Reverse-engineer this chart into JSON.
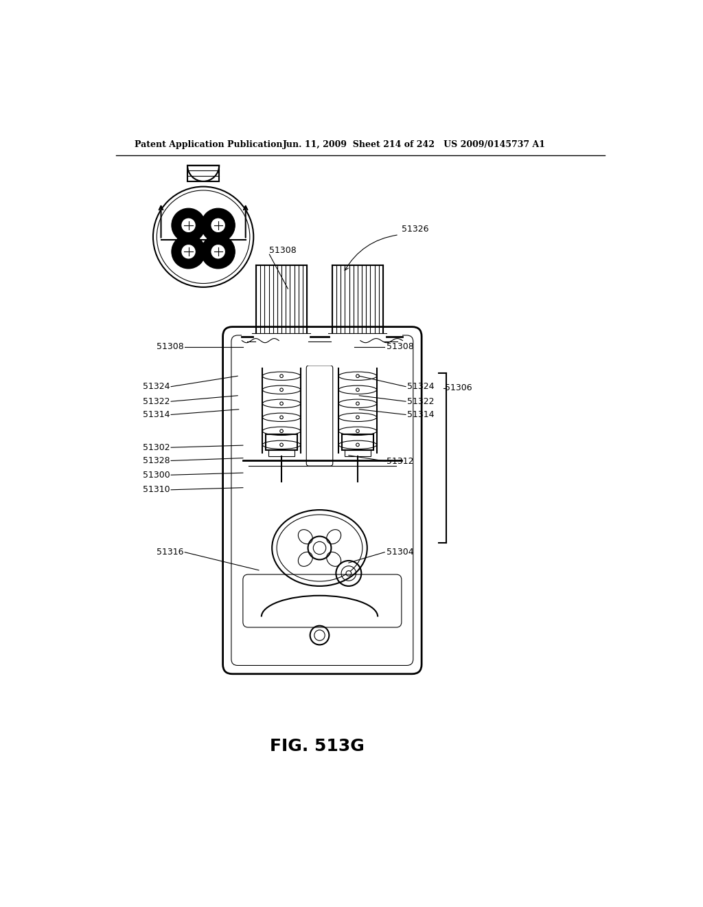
{
  "title_left": "Patent Application Publication",
  "title_right": "Jun. 11, 2009  Sheet 214 of 242   US 2009/0145737 A1",
  "fig_label": "FIG. 513G",
  "background_color": "#ffffff",
  "line_color": "#000000"
}
